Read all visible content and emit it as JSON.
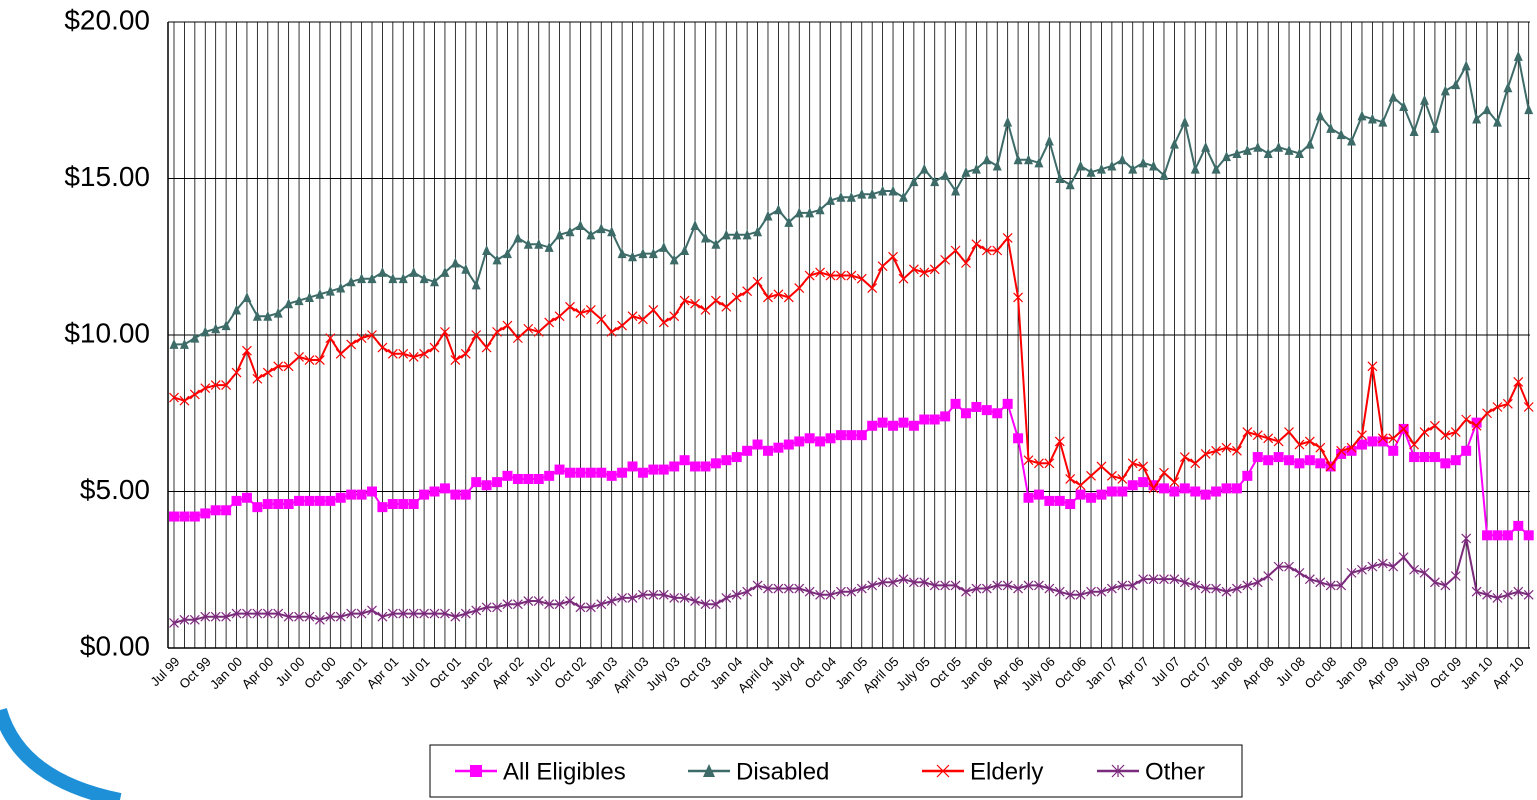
{
  "chart_data": {
    "type": "line",
    "categories": [
      "Jul 99",
      null,
      null,
      "Oct 99",
      null,
      null,
      "Jan 00",
      null,
      null,
      "Apr 00",
      null,
      null,
      "Jul 00",
      null,
      null,
      "Oct 00",
      null,
      null,
      "Jan 01",
      null,
      null,
      "Apr 01",
      null,
      null,
      "Jul 01",
      null,
      null,
      "Oct 01",
      null,
      null,
      "Jan 02",
      null,
      null,
      "Apr 02",
      null,
      null,
      "Jul 02",
      null,
      null,
      "Oct 02",
      null,
      null,
      "Jan 03",
      null,
      null,
      "April 03",
      null,
      null,
      "July 03",
      null,
      null,
      "Oct 03",
      null,
      null,
      "Jan 04",
      null,
      null,
      "April 04",
      null,
      null,
      "July 04",
      null,
      null,
      "Oct 04",
      null,
      null,
      "Jan 05",
      null,
      null,
      "April 05",
      null,
      null,
      "July 05",
      null,
      null,
      "Oct 05",
      null,
      null,
      "Jan 06",
      null,
      null,
      "Apr 06",
      null,
      null,
      "July 06",
      null,
      null,
      "Oct 06",
      null,
      null,
      "Jan 07",
      null,
      null,
      "Apr 07",
      null,
      null,
      "Jul 07",
      null,
      null,
      "Oct 07",
      null,
      null,
      "Jan 08",
      null,
      null,
      "Apr 08",
      null,
      null,
      "Jul 08",
      null,
      null,
      "Oct 08",
      null,
      null,
      "Jan 09",
      null,
      null,
      "Apr 09",
      null,
      null,
      "July 09",
      null,
      null,
      "Oct 09",
      null,
      null,
      "Jan 10",
      null,
      null,
      "Apr 10",
      null
    ],
    "series": [
      {
        "name": "All Eligibles",
        "color": "#ff00ff",
        "marker": "square",
        "values": [
          4.2,
          4.2,
          4.2,
          4.3,
          4.4,
          4.4,
          4.7,
          4.8,
          4.5,
          4.6,
          4.6,
          4.6,
          4.7,
          4.7,
          4.7,
          4.7,
          4.8,
          4.9,
          4.9,
          5.0,
          4.5,
          4.6,
          4.6,
          4.6,
          4.9,
          5.0,
          5.1,
          4.9,
          4.9,
          5.3,
          5.2,
          5.3,
          5.5,
          5.4,
          5.4,
          5.4,
          5.5,
          5.7,
          5.6,
          5.6,
          5.6,
          5.6,
          5.5,
          5.6,
          5.8,
          5.6,
          5.7,
          5.7,
          5.8,
          6.0,
          5.8,
          5.8,
          5.9,
          6.0,
          6.1,
          6.3,
          6.5,
          6.3,
          6.4,
          6.5,
          6.6,
          6.7,
          6.6,
          6.7,
          6.8,
          6.8,
          6.8,
          7.1,
          7.2,
          7.1,
          7.2,
          7.1,
          7.3,
          7.3,
          7.4,
          7.8,
          7.5,
          7.7,
          7.6,
          7.5,
          7.8,
          6.7,
          4.8,
          4.9,
          4.7,
          4.7,
          4.6,
          4.9,
          4.8,
          4.9,
          5.0,
          5.0,
          5.2,
          5.3,
          5.2,
          5.1,
          5.0,
          5.1,
          5.0,
          4.9,
          5.0,
          5.1,
          5.1,
          5.5,
          6.1,
          6.0,
          6.1,
          6.0,
          5.9,
          6.0,
          5.9,
          5.8,
          6.2,
          6.3,
          6.5,
          6.6,
          6.6,
          6.3,
          7.0,
          6.1,
          6.1,
          6.1,
          5.9,
          6.0,
          6.3,
          7.2,
          3.6,
          3.6,
          3.6,
          3.9,
          3.6
        ]
      },
      {
        "name": "Disabled",
        "color": "#3d6b68",
        "marker": "triangle",
        "values": [
          9.7,
          9.7,
          9.9,
          10.1,
          10.2,
          10.3,
          10.8,
          11.2,
          10.6,
          10.6,
          10.7,
          11.0,
          11.1,
          11.2,
          11.3,
          11.4,
          11.5,
          11.7,
          11.8,
          11.8,
          12.0,
          11.8,
          11.8,
          12.0,
          11.8,
          11.7,
          12.0,
          12.3,
          12.1,
          11.6,
          12.7,
          12.4,
          12.6,
          13.1,
          12.9,
          12.9,
          12.8,
          13.2,
          13.3,
          13.5,
          13.2,
          13.4,
          13.3,
          12.6,
          12.5,
          12.6,
          12.6,
          12.8,
          12.4,
          12.7,
          13.5,
          13.1,
          12.9,
          13.2,
          13.2,
          13.2,
          13.3,
          13.8,
          14.0,
          13.6,
          13.9,
          13.9,
          14.0,
          14.3,
          14.4,
          14.4,
          14.5,
          14.5,
          14.6,
          14.6,
          14.4,
          14.9,
          15.3,
          14.9,
          15.1,
          14.6,
          15.2,
          15.3,
          15.6,
          15.4,
          16.8,
          15.6,
          15.6,
          15.5,
          16.2,
          15.0,
          14.8,
          15.4,
          15.2,
          15.3,
          15.4,
          15.6,
          15.3,
          15.5,
          15.4,
          15.1,
          16.1,
          16.8,
          15.3,
          16.0,
          15.3,
          15.7,
          15.8,
          15.9,
          16.0,
          15.8,
          16.0,
          15.9,
          15.8,
          16.1,
          17.0,
          16.6,
          16.4,
          16.2,
          17.0,
          16.9,
          16.8,
          17.6,
          17.3,
          16.5,
          17.5,
          16.6,
          17.8,
          18.0,
          18.6,
          16.9,
          17.2,
          16.8,
          17.9,
          18.9,
          17.2
        ]
      },
      {
        "name": "Elderly",
        "color": "#ff0000",
        "marker": "x",
        "values": [
          8.0,
          7.9,
          8.1,
          8.3,
          8.4,
          8.4,
          8.8,
          9.5,
          8.6,
          8.8,
          9.0,
          9.0,
          9.3,
          9.2,
          9.2,
          9.9,
          9.4,
          9.7,
          9.9,
          10.0,
          9.6,
          9.4,
          9.4,
          9.3,
          9.4,
          9.6,
          10.1,
          9.2,
          9.4,
          10.0,
          9.6,
          10.1,
          10.3,
          9.9,
          10.2,
          10.1,
          10.4,
          10.6,
          10.9,
          10.7,
          10.8,
          10.5,
          10.1,
          10.3,
          10.6,
          10.5,
          10.8,
          10.4,
          10.6,
          11.1,
          11.0,
          10.8,
          11.1,
          10.9,
          11.2,
          11.4,
          11.7,
          11.2,
          11.3,
          11.2,
          11.5,
          11.9,
          12.0,
          11.9,
          11.9,
          11.9,
          11.8,
          11.5,
          12.2,
          12.5,
          11.8,
          12.1,
          12.0,
          12.1,
          12.4,
          12.7,
          12.3,
          12.9,
          12.7,
          12.7,
          13.1,
          11.2,
          6.0,
          5.9,
          5.9,
          6.6,
          5.4,
          5.2,
          5.5,
          5.8,
          5.5,
          5.4,
          5.9,
          5.8,
          5.1,
          5.6,
          5.3,
          6.1,
          5.9,
          6.2,
          6.3,
          6.4,
          6.3,
          6.9,
          6.8,
          6.7,
          6.6,
          6.9,
          6.5,
          6.6,
          6.4,
          5.8,
          6.3,
          6.4,
          6.8,
          9.0,
          6.7,
          6.7,
          7.0,
          6.5,
          6.9,
          7.1,
          6.8,
          6.9,
          7.3,
          7.1,
          7.5,
          7.7,
          7.8,
          8.5,
          7.7
        ]
      },
      {
        "name": "Other",
        "color": "#7b2b7b",
        "marker": "asterisk",
        "values": [
          0.8,
          0.9,
          0.9,
          1.0,
          1.0,
          1.0,
          1.1,
          1.1,
          1.1,
          1.1,
          1.1,
          1.0,
          1.0,
          1.0,
          0.9,
          1.0,
          1.0,
          1.1,
          1.1,
          1.2,
          1.0,
          1.1,
          1.1,
          1.1,
          1.1,
          1.1,
          1.1,
          1.0,
          1.1,
          1.2,
          1.3,
          1.3,
          1.4,
          1.4,
          1.5,
          1.5,
          1.4,
          1.4,
          1.5,
          1.3,
          1.3,
          1.4,
          1.5,
          1.6,
          1.6,
          1.7,
          1.7,
          1.7,
          1.6,
          1.6,
          1.5,
          1.4,
          1.4,
          1.6,
          1.7,
          1.8,
          2.0,
          1.9,
          1.9,
          1.9,
          1.9,
          1.8,
          1.7,
          1.7,
          1.8,
          1.8,
          1.9,
          2.0,
          2.1,
          2.1,
          2.2,
          2.1,
          2.1,
          2.0,
          2.0,
          2.0,
          1.8,
          1.9,
          1.9,
          2.0,
          2.0,
          1.9,
          2.0,
          2.0,
          1.9,
          1.8,
          1.7,
          1.7,
          1.8,
          1.8,
          1.9,
          2.0,
          2.0,
          2.2,
          2.2,
          2.2,
          2.2,
          2.1,
          2.0,
          1.9,
          1.9,
          1.8,
          1.9,
          2.0,
          2.1,
          2.3,
          2.6,
          2.6,
          2.4,
          2.2,
          2.1,
          2.0,
          2.0,
          2.4,
          2.5,
          2.6,
          2.7,
          2.6,
          2.9,
          2.5,
          2.4,
          2.1,
          2.0,
          2.3,
          3.5,
          1.8,
          1.7,
          1.6,
          1.7,
          1.8,
          1.7
        ]
      }
    ],
    "ylim": [
      0,
      20
    ],
    "yticks": [
      {
        "value": 0,
        "label": "$0.00"
      },
      {
        "value": 5,
        "label": "$5.00"
      },
      {
        "value": 10,
        "label": "$10.00"
      },
      {
        "value": 15,
        "label": "$15.00"
      },
      {
        "value": 20,
        "label": "$20.00"
      }
    ],
    "grid": true,
    "legend": "bottom"
  }
}
